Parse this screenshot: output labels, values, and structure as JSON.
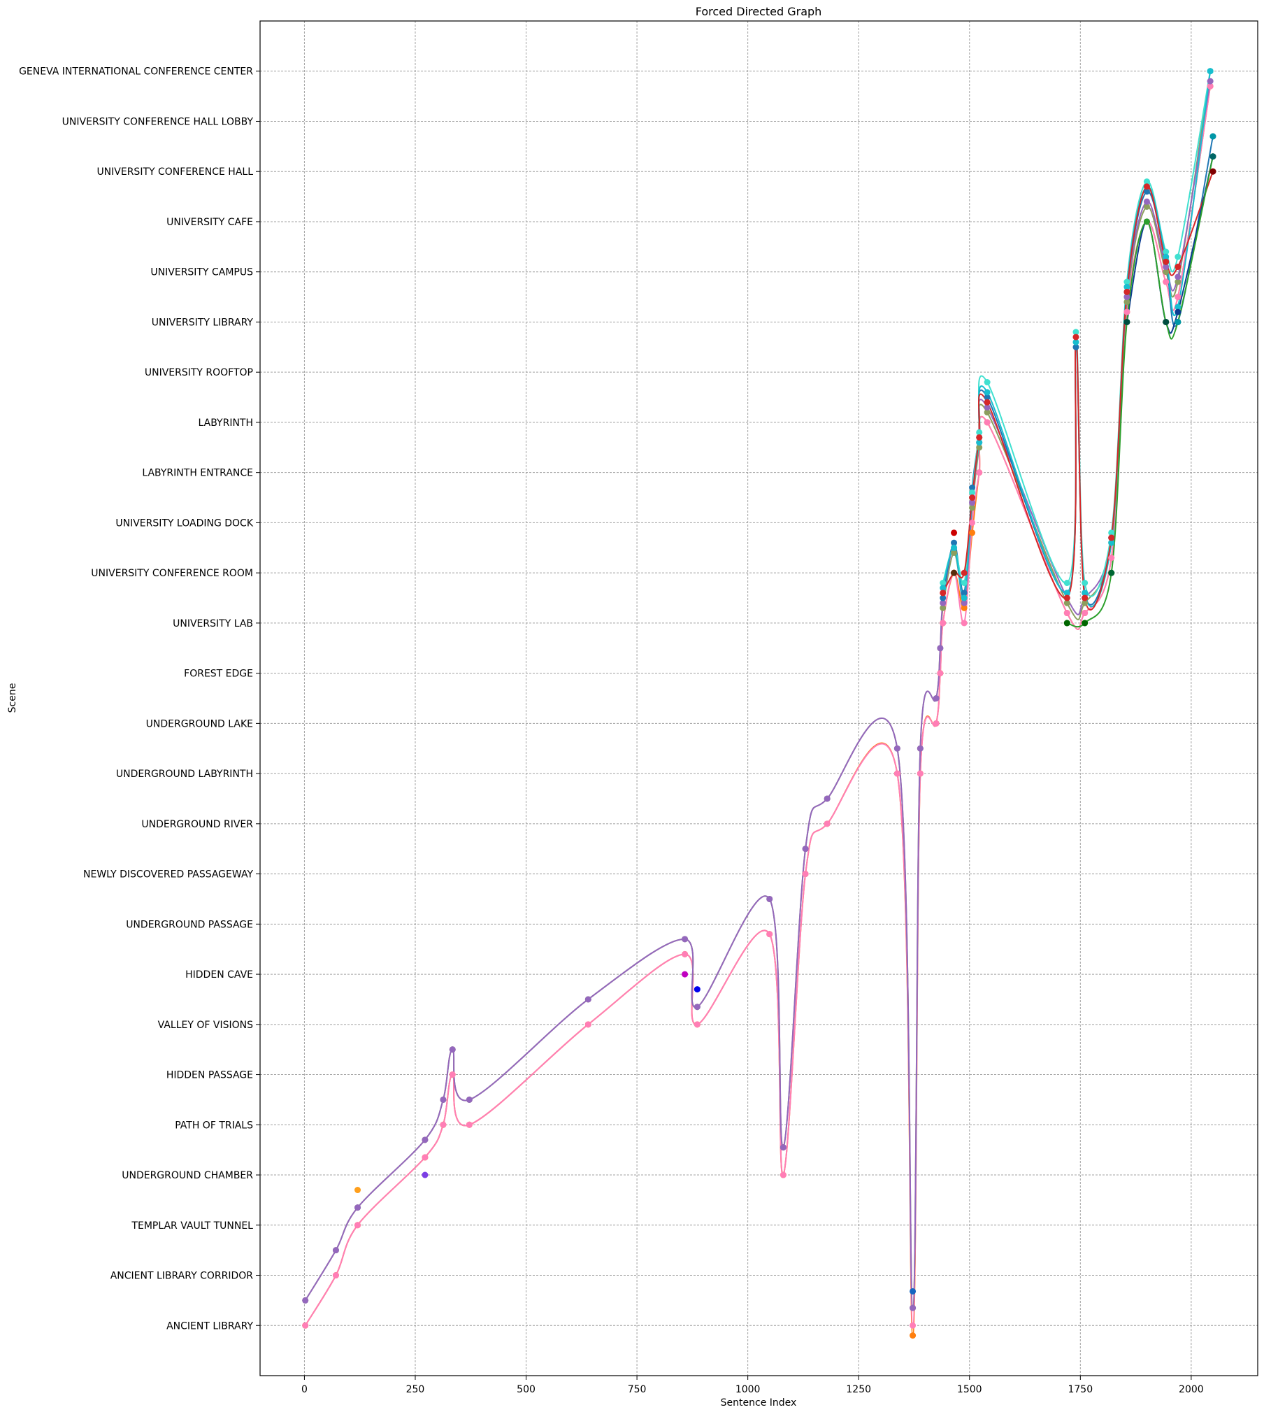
{
  "chart_data": {
    "type": "line",
    "title": "Forced Directed Graph",
    "xlabel": "Sentence Index",
    "ylabel": "Scene",
    "xlim": [
      -100,
      2150
    ],
    "ylim": [
      -1,
      26
    ],
    "xticks": [
      0,
      250,
      500,
      750,
      1000,
      1250,
      1500,
      1750,
      2000
    ],
    "grid": true,
    "categories": [
      "ANCIENT LIBRARY",
      "ANCIENT LIBRARY CORRIDOR",
      "TEMPLAR VAULT TUNNEL",
      "UNDERGROUND CHAMBER",
      "PATH OF TRIALS",
      "HIDDEN PASSAGE",
      "VALLEY OF VISIONS",
      "HIDDEN CAVE",
      "UNDERGROUND PASSAGE",
      "NEWLY DISCOVERED PASSAGEWAY",
      "UNDERGROUND RIVER",
      "UNDERGROUND LABYRINTH",
      "UNDERGROUND LAKE",
      "FOREST EDGE",
      "UNIVERSITY LAB",
      "UNIVERSITY CONFERENCE ROOM",
      "UNIVERSITY LOADING DOCK",
      "LABYRINTH ENTRANCE",
      "LABYRINTH",
      "UNIVERSITY ROOFTOP",
      "UNIVERSITY LIBRARY",
      "UNIVERSITY CAMPUS",
      "UNIVERSITY CAFE",
      "UNIVERSITY CONFERENCE HALL",
      "UNIVERSITY CONFERENCE HALL LOBBY",
      "GENEVA INTERNATIONAL CONFERENCE CENTER"
    ],
    "series": [
      {
        "color": "#ff7f0e",
        "points": [
          [
            2,
            0
          ],
          [
            71,
            1
          ],
          [
            120,
            2
          ],
          [
            272,
            3.35
          ],
          [
            313,
            4
          ],
          [
            334,
            5
          ],
          [
            372,
            4
          ],
          [
            640,
            6
          ],
          [
            858,
            7.4
          ],
          [
            886,
            6
          ],
          [
            1049,
            7.8
          ],
          [
            1080,
            3
          ],
          [
            1130,
            9
          ],
          [
            1179,
            10
          ],
          [
            1337,
            11
          ],
          [
            1372,
            -0.2
          ],
          [
            1389,
            11
          ],
          [
            1425,
            12
          ],
          [
            1434,
            13
          ],
          [
            1440,
            14
          ],
          [
            1465,
            15
          ],
          [
            1488,
            14.3
          ],
          [
            1506,
            15.8
          ],
          [
            1522,
            17
          ],
          [
            1540,
            18
          ],
          [
            1720,
            14.2
          ],
          [
            1760,
            14.2
          ],
          [
            1820,
            15.3
          ],
          [
            1855,
            20.2
          ],
          [
            1900,
            22
          ],
          [
            1943,
            20.8
          ],
          [
            1970,
            20.5
          ],
          [
            2043,
            24.7
          ]
        ]
      },
      {
        "color": "#ff7eb6",
        "points": [
          [
            2,
            0
          ],
          [
            71,
            1
          ],
          [
            120,
            2
          ],
          [
            272,
            3.35
          ],
          [
            313,
            4
          ],
          [
            334,
            5
          ],
          [
            372,
            4
          ],
          [
            640,
            6
          ],
          [
            858,
            7.4
          ],
          [
            886,
            6
          ],
          [
            1049,
            7.8
          ],
          [
            1080,
            3
          ],
          [
            1130,
            9
          ],
          [
            1179,
            10
          ],
          [
            1337,
            11
          ],
          [
            1372,
            0
          ],
          [
            1389,
            11
          ],
          [
            1425,
            12
          ],
          [
            1434,
            13
          ],
          [
            1440,
            14
          ],
          [
            1465,
            15
          ],
          [
            1488,
            14
          ],
          [
            1506,
            16
          ],
          [
            1522,
            17
          ],
          [
            1540,
            18
          ],
          [
            1720,
            14.2
          ],
          [
            1760,
            14.2
          ],
          [
            1820,
            15.3
          ],
          [
            1855,
            20.2
          ],
          [
            1900,
            22
          ],
          [
            1943,
            20.8
          ],
          [
            1970,
            20.5
          ],
          [
            2043,
            24.7
          ]
        ]
      },
      {
        "color": "#8c9e5e",
        "points": [
          [
            2,
            0.5
          ],
          [
            71,
            1.5
          ],
          [
            120,
            2.35
          ],
          [
            272,
            3.7
          ],
          [
            313,
            4.5
          ],
          [
            334,
            5.5
          ],
          [
            372,
            4.5
          ],
          [
            640,
            6.5
          ],
          [
            858,
            7.7
          ],
          [
            886,
            6.35
          ],
          [
            1049,
            8.5
          ],
          [
            1080,
            3.55
          ],
          [
            1130,
            9.5
          ],
          [
            1179,
            10.5
          ],
          [
            1337,
            11.5
          ],
          [
            1372,
            0.35
          ],
          [
            1389,
            11.5
          ],
          [
            1425,
            12.5
          ],
          [
            1434,
            13.5
          ],
          [
            1440,
            14.3
          ],
          [
            1465,
            15.4
          ],
          [
            1488,
            14.5
          ],
          [
            1506,
            16.3
          ],
          [
            1522,
            17.5
          ],
          [
            1540,
            18.2
          ],
          [
            1720,
            14.4
          ],
          [
            1760,
            14.4
          ],
          [
            1820,
            15.6
          ],
          [
            1855,
            20.4
          ],
          [
            1900,
            22.3
          ],
          [
            1943,
            21
          ],
          [
            1970,
            20.8
          ],
          [
            2043,
            25
          ]
        ]
      },
      {
        "color": "#9467bd",
        "points": [
          [
            2,
            0.5
          ],
          [
            71,
            1.5
          ],
          [
            120,
            2.35
          ],
          [
            272,
            3.7
          ],
          [
            313,
            4.5
          ],
          [
            334,
            5.5
          ],
          [
            372,
            4.5
          ],
          [
            640,
            6.5
          ],
          [
            858,
            7.7
          ],
          [
            886,
            6.35
          ],
          [
            1049,
            8.5
          ],
          [
            1080,
            3.55
          ],
          [
            1130,
            9.5
          ],
          [
            1179,
            10.5
          ],
          [
            1337,
            11.5
          ],
          [
            1372,
            0.35
          ],
          [
            1389,
            11.5
          ],
          [
            1425,
            12.5
          ],
          [
            1434,
            13.5
          ],
          [
            1440,
            14.4
          ],
          [
            1465,
            15.5
          ],
          [
            1488,
            14.4
          ],
          [
            1506,
            16.4
          ],
          [
            1522,
            17.6
          ],
          [
            1540,
            18.3
          ],
          [
            1720,
            14.5
          ],
          [
            1760,
            14.5
          ],
          [
            1820,
            15.7
          ],
          [
            1855,
            20.5
          ],
          [
            1900,
            22.4
          ],
          [
            1943,
            21.1
          ],
          [
            1970,
            20.9
          ],
          [
            2043,
            24.8
          ]
        ]
      },
      {
        "color": "#1f77b4",
        "points": [
          [
            1440,
            14.5
          ],
          [
            1465,
            15.6
          ],
          [
            1488,
            14.6
          ],
          [
            1506,
            16.7
          ],
          [
            1522,
            17.7
          ],
          [
            1540,
            18.5
          ],
          [
            1720,
            14.6
          ],
          [
            1740,
            19.5
          ],
          [
            1760,
            14.6
          ],
          [
            1820,
            15.7
          ],
          [
            1855,
            20.6
          ],
          [
            1900,
            22.6
          ],
          [
            1943,
            21.2
          ],
          [
            1970,
            20
          ],
          [
            2049,
            23.7
          ]
        ]
      },
      {
        "color": "#40e0d0",
        "points": [
          [
            1440,
            14.8
          ],
          [
            1465,
            15.5
          ],
          [
            1488,
            14.8
          ],
          [
            1506,
            16.6
          ],
          [
            1522,
            17.8
          ],
          [
            1540,
            18.8
          ],
          [
            1720,
            14.8
          ],
          [
            1740,
            19.8
          ],
          [
            1760,
            14.8
          ],
          [
            1820,
            15.8
          ],
          [
            1855,
            20.8
          ],
          [
            1900,
            22.8
          ],
          [
            1943,
            21.4
          ],
          [
            1970,
            21.3
          ],
          [
            2043,
            25
          ]
        ]
      },
      {
        "color": "#17becf",
        "points": [
          [
            1440,
            14.7
          ],
          [
            1465,
            15.5
          ],
          [
            1488,
            14.5
          ],
          [
            1506,
            16.5
          ],
          [
            1522,
            17.6
          ],
          [
            1540,
            18.6
          ],
          [
            1720,
            14.6
          ],
          [
            1740,
            19.6
          ],
          [
            1760,
            14.6
          ],
          [
            1820,
            15.6
          ],
          [
            1855,
            20.7
          ],
          [
            1900,
            22.7
          ],
          [
            1943,
            21.3
          ],
          [
            1970,
            20.3
          ],
          [
            2043,
            25
          ]
        ]
      },
      {
        "color": "#d62728",
        "points": [
          [
            1440,
            14.6
          ],
          [
            1465,
            15
          ],
          [
            1488,
            15
          ],
          [
            1506,
            16.5
          ],
          [
            1522,
            17.7
          ],
          [
            1540,
            18.4
          ],
          [
            1720,
            14.5
          ],
          [
            1740,
            19.7
          ],
          [
            1760,
            14.5
          ],
          [
            1820,
            15.7
          ],
          [
            1855,
            20.6
          ],
          [
            1900,
            22.7
          ],
          [
            1943,
            21.2
          ],
          [
            1970,
            21.1
          ],
          [
            2049,
            23
          ]
        ]
      },
      {
        "color": "#0b3d91",
        "points": [
          [
            1855,
            20
          ],
          [
            1900,
            22
          ],
          [
            1943,
            20
          ],
          [
            1970,
            20.2
          ],
          [
            2049,
            23.3
          ]
        ]
      },
      {
        "color": "#2ca02c",
        "points": [
          [
            1720,
            14
          ],
          [
            1760,
            14
          ],
          [
            1820,
            15
          ],
          [
            1855,
            20
          ],
          [
            1900,
            22
          ],
          [
            1943,
            20
          ],
          [
            1970,
            20
          ],
          [
            2049,
            23.3
          ]
        ]
      }
    ],
    "scatter": [
      {
        "color": "#ff9f1c",
        "x": 120,
        "y": 2.7
      },
      {
        "color": "#7b3fe4",
        "x": 272,
        "y": 3
      },
      {
        "color": "#c000c0",
        "x": 858,
        "y": 7
      },
      {
        "color": "#0000ee",
        "x": 886,
        "y": 6.7
      },
      {
        "color": "#1565c0",
        "x": 1372,
        "y": 0.68
      },
      {
        "color": "#cc0000",
        "x": 1465,
        "y": 15.8
      },
      {
        "color": "#5a2d0c",
        "x": 1465,
        "y": 15
      },
      {
        "color": "#006600",
        "x": 1720,
        "y": 14
      },
      {
        "color": "#006600",
        "x": 1760,
        "y": 14
      },
      {
        "color": "#006633",
        "x": 1820,
        "y": 15
      },
      {
        "color": "#004d40",
        "x": 1855,
        "y": 20
      },
      {
        "color": "#004d40",
        "x": 1943,
        "y": 20
      },
      {
        "color": "#0097a7",
        "x": 1970,
        "y": 20
      },
      {
        "color": "#006666",
        "x": 2049,
        "y": 23.3
      },
      {
        "color": "#800000",
        "x": 2049,
        "y": 23
      },
      {
        "color": "#0097a7",
        "x": 2049,
        "y": 23.7
      }
    ]
  }
}
